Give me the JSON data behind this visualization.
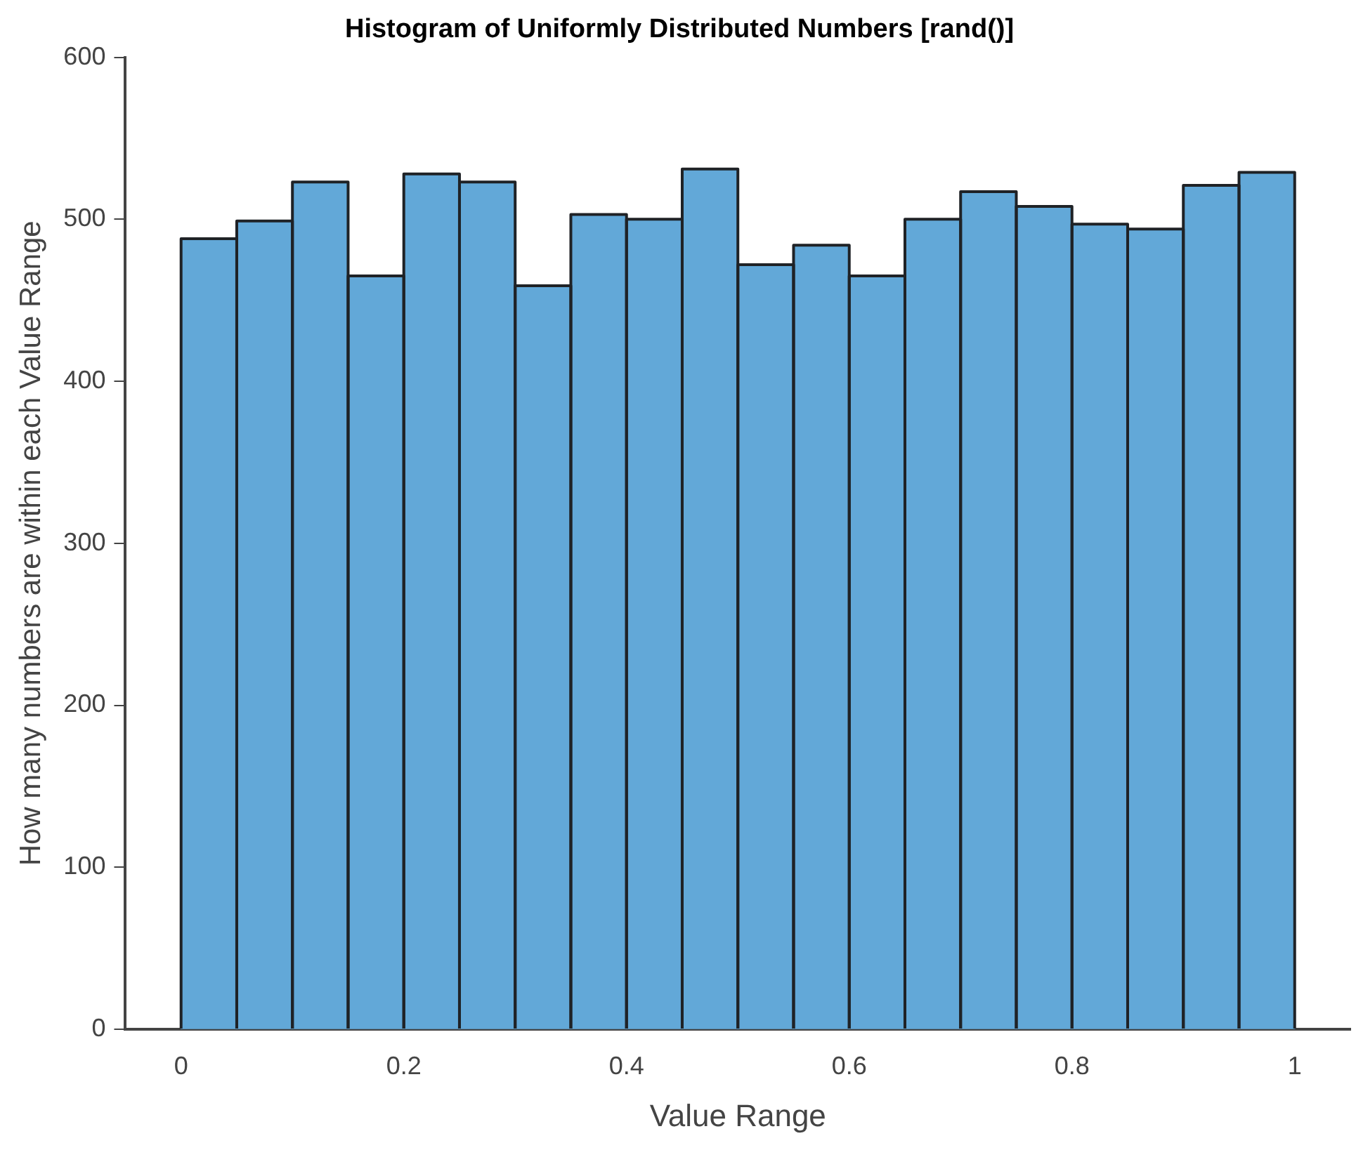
{
  "chart_data": {
    "type": "histogram",
    "title": "Histogram of Uniformly Distributed Numbers [rand()]",
    "xlabel": "Value Range",
    "ylabel": "How many numbers are within each Value Range",
    "bins": [
      0,
      0.05,
      0.1,
      0.15,
      0.2,
      0.25,
      0.3,
      0.35,
      0.4,
      0.45,
      0.5,
      0.55,
      0.6,
      0.65,
      0.7,
      0.75,
      0.8,
      0.85,
      0.9,
      0.95,
      1
    ],
    "values": [
      488,
      499,
      523,
      465,
      528,
      523,
      459,
      503,
      500,
      531,
      472,
      484,
      465,
      500,
      517,
      508,
      497,
      494,
      521,
      529
    ],
    "color": "#62a8d8",
    "xlim": [
      -0.05,
      1.05
    ],
    "xticks": [
      0,
      0.2,
      0.4,
      0.6,
      0.8,
      1
    ],
    "ylim": [
      0,
      600
    ],
    "yticks": [
      0,
      100,
      200,
      300,
      400,
      500,
      600
    ],
    "grid": false,
    "legend": false
  }
}
